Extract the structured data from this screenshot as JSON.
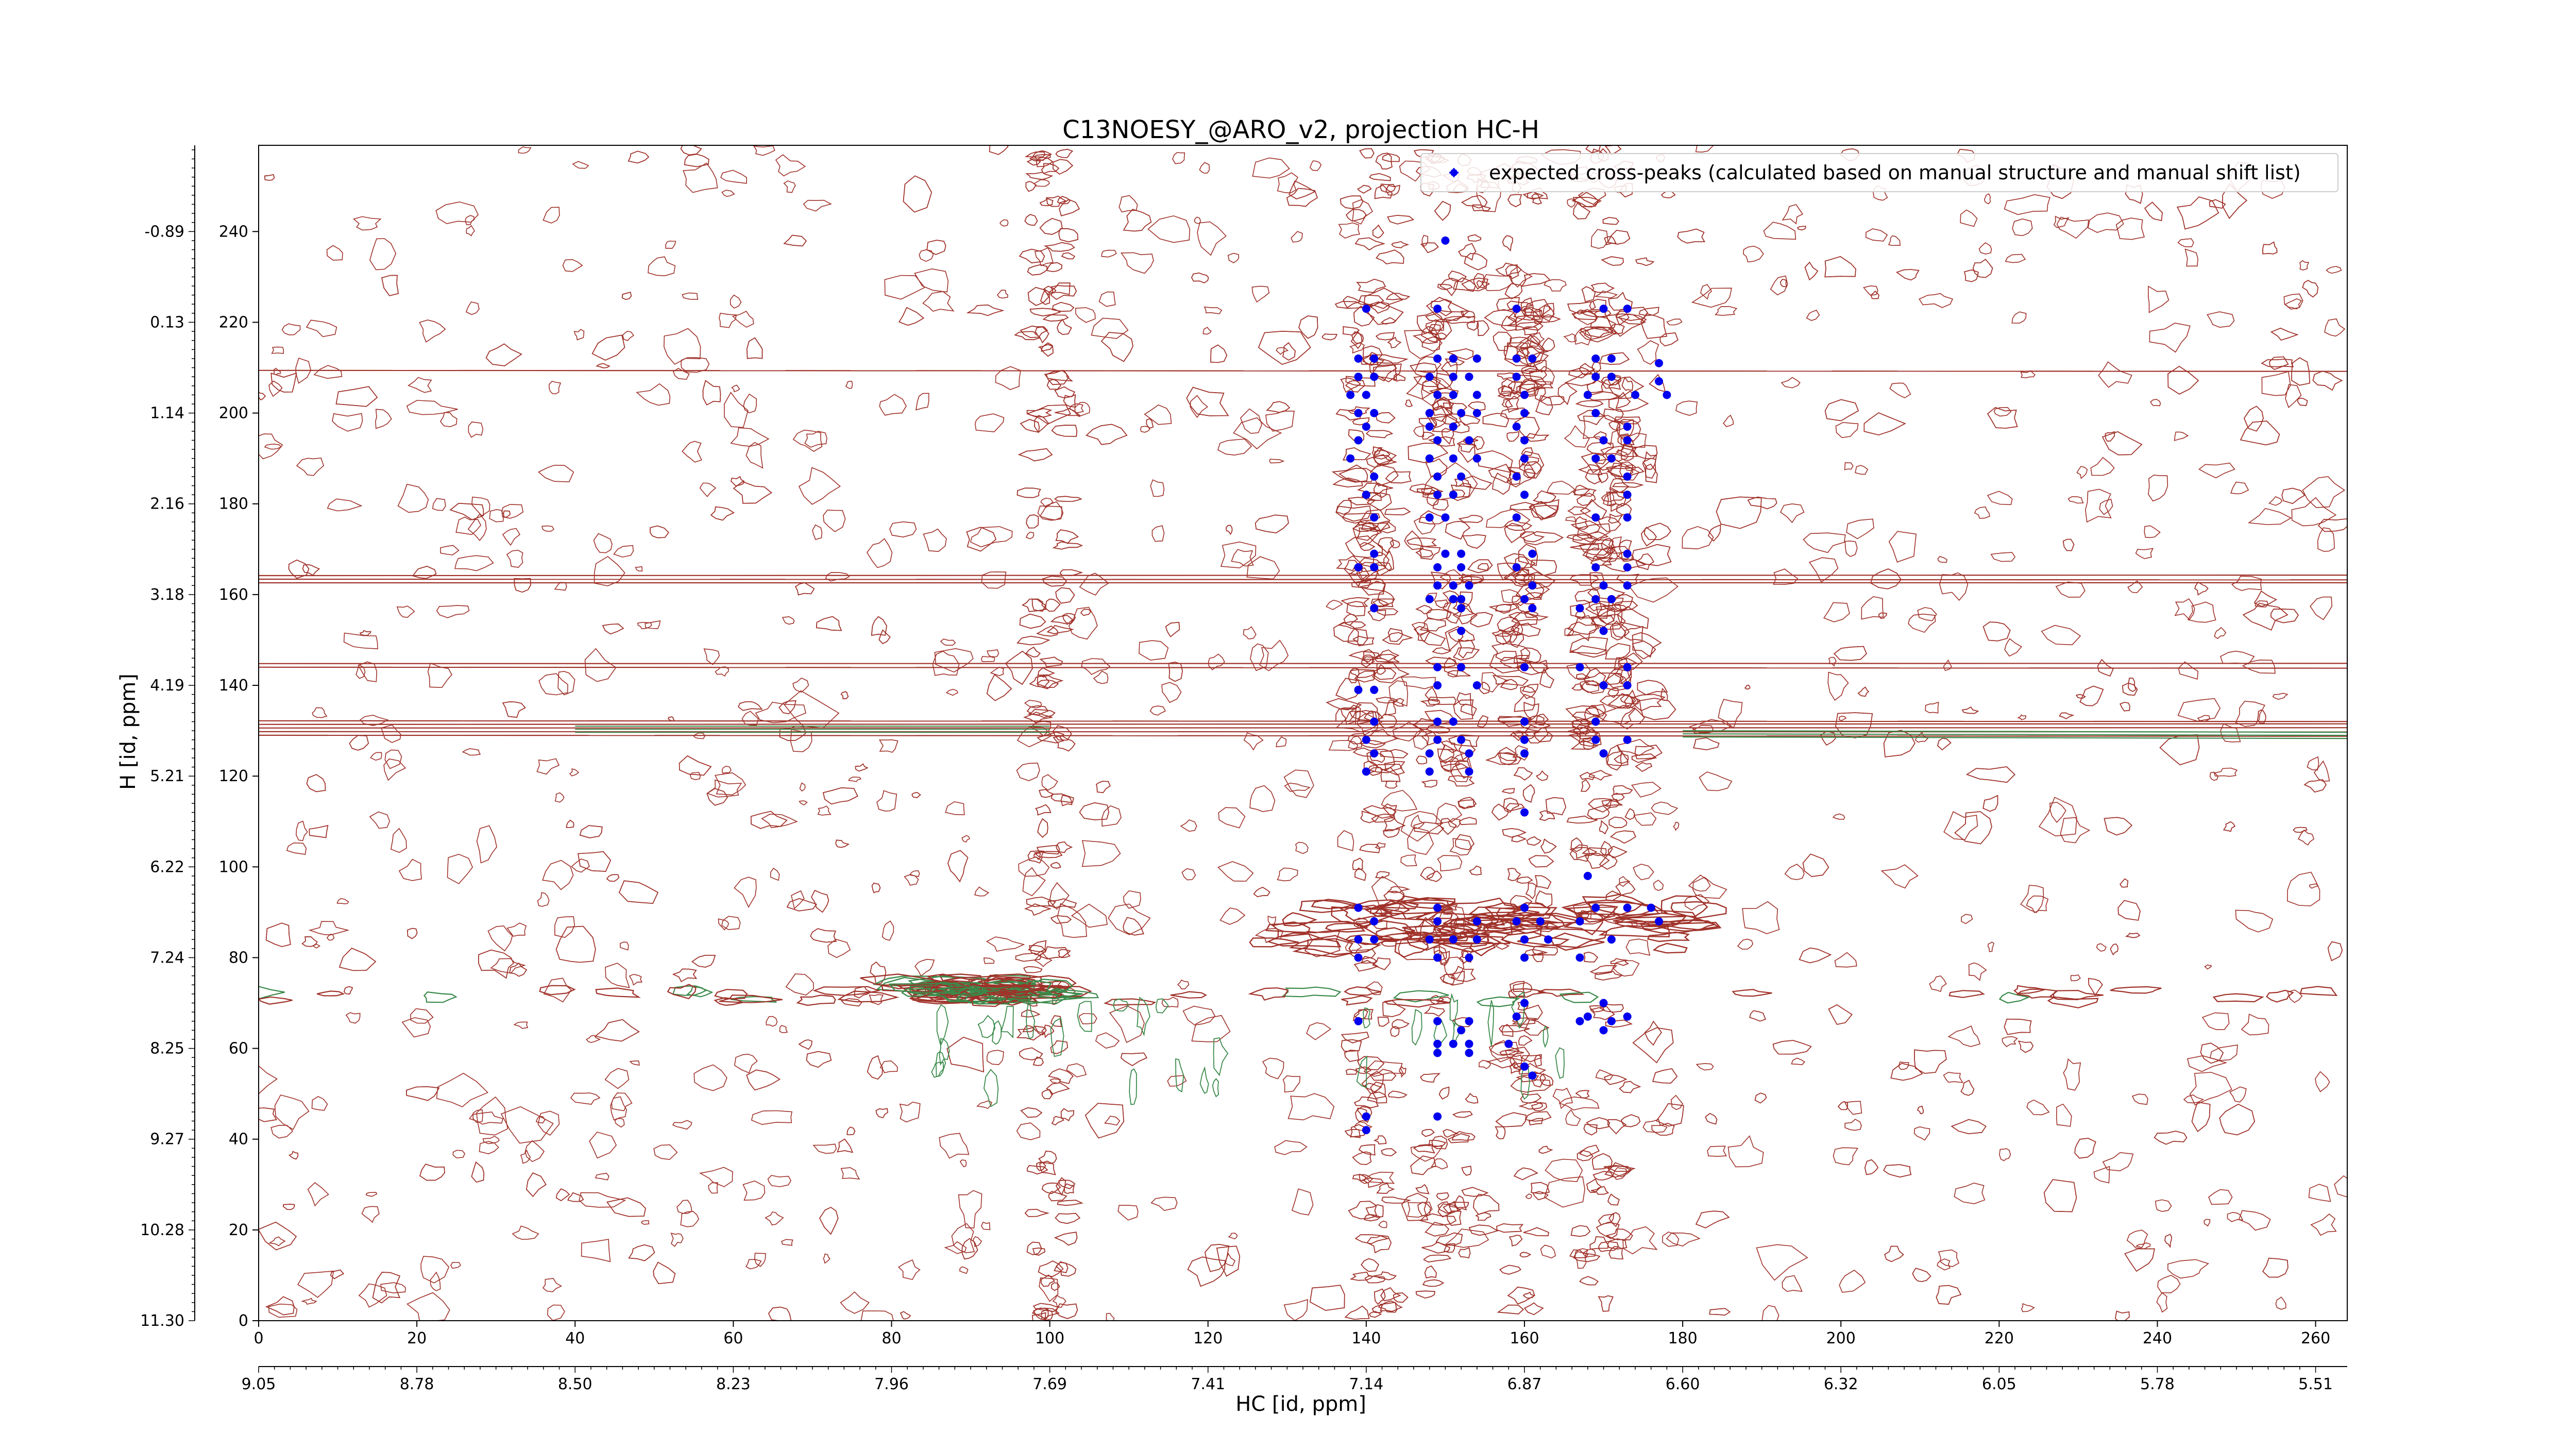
{
  "chart_data": {
    "type": "scatter",
    "title": "C13NOESY_@ARO_v2, projection HC-H",
    "xlabel": "HC [id, ppm]",
    "ylabel": "H [id, ppm]",
    "xlim": [
      0,
      264
    ],
    "ylim": [
      0,
      259
    ],
    "x_ticks_index": [
      "0",
      "20",
      "40",
      "60",
      "80",
      "100",
      "120",
      "140",
      "160",
      "180",
      "200",
      "220",
      "240",
      "260"
    ],
    "x_ticks_ppm": [
      "9.05",
      "8.78",
      "8.50",
      "8.23",
      "7.96",
      "7.69",
      "7.41",
      "7.14",
      "6.87",
      "6.60",
      "6.32",
      "6.05",
      "5.78",
      "5.51"
    ],
    "y_ticks_index": [
      "0",
      "20",
      "40",
      "60",
      "80",
      "100",
      "120",
      "140",
      "160",
      "180",
      "200",
      "220",
      "240"
    ],
    "y_ticks_ppm": [
      "11.30",
      "10.28",
      "9.27",
      "8.25",
      "7.24",
      "6.22",
      "5.21",
      "4.19",
      "3.18",
      "2.16",
      "1.14",
      "0.13",
      "-0.89"
    ],
    "legend": {
      "position": "top-right",
      "entries": [
        "expected cross-peaks (calculated based on manual structure and manual shift list)"
      ]
    },
    "colors": {
      "positive_contours": "#a0322a",
      "negative_contours": "#3a8a4a",
      "cross_peaks": "#0000ee"
    },
    "series": [
      {
        "name": "expected cross-peaks (calculated based on manual structure and manual shift list)",
        "points": [
          [
            150,
            238
          ],
          [
            140,
            223
          ],
          [
            149,
            223
          ],
          [
            159,
            223
          ],
          [
            170,
            223
          ],
          [
            173,
            223
          ],
          [
            139,
            212
          ],
          [
            141,
            212
          ],
          [
            149,
            212
          ],
          [
            151,
            212
          ],
          [
            154,
            212
          ],
          [
            159,
            212
          ],
          [
            161,
            212
          ],
          [
            169,
            212
          ],
          [
            171,
            212
          ],
          [
            177,
            211
          ],
          [
            139,
            208
          ],
          [
            141,
            208
          ],
          [
            148,
            208
          ],
          [
            151,
            208
          ],
          [
            153,
            208
          ],
          [
            159,
            208
          ],
          [
            169,
            208
          ],
          [
            171,
            208
          ],
          [
            177,
            207
          ],
          [
            138,
            204
          ],
          [
            140,
            204
          ],
          [
            149,
            204
          ],
          [
            151,
            204
          ],
          [
            154,
            204
          ],
          [
            160,
            204
          ],
          [
            168,
            204
          ],
          [
            174,
            204
          ],
          [
            178,
            204
          ],
          [
            139,
            200
          ],
          [
            141,
            200
          ],
          [
            148,
            200
          ],
          [
            152,
            200
          ],
          [
            154,
            200
          ],
          [
            160,
            200
          ],
          [
            169,
            200
          ],
          [
            140,
            197
          ],
          [
            148,
            197
          ],
          [
            151,
            197
          ],
          [
            159,
            197
          ],
          [
            173,
            197
          ],
          [
            139,
            194
          ],
          [
            149,
            194
          ],
          [
            153,
            194
          ],
          [
            160,
            194
          ],
          [
            170,
            194
          ],
          [
            173,
            194
          ],
          [
            138,
            190
          ],
          [
            148,
            190
          ],
          [
            151,
            190
          ],
          [
            154,
            190
          ],
          [
            160,
            190
          ],
          [
            169,
            190
          ],
          [
            171,
            190
          ],
          [
            141,
            186
          ],
          [
            149,
            186
          ],
          [
            152,
            186
          ],
          [
            159,
            186
          ],
          [
            173,
            186
          ],
          [
            140,
            182
          ],
          [
            149,
            182
          ],
          [
            151,
            182
          ],
          [
            160,
            182
          ],
          [
            173,
            182
          ],
          [
            141,
            177
          ],
          [
            148,
            177
          ],
          [
            150,
            177
          ],
          [
            159,
            177
          ],
          [
            169,
            177
          ],
          [
            173,
            177
          ],
          [
            141,
            169
          ],
          [
            150,
            169
          ],
          [
            152,
            169
          ],
          [
            161,
            169
          ],
          [
            173,
            169
          ],
          [
            139,
            166
          ],
          [
            141,
            166
          ],
          [
            149,
            166
          ],
          [
            152,
            166
          ],
          [
            159,
            166
          ],
          [
            169,
            166
          ],
          [
            173,
            166
          ],
          [
            149,
            162
          ],
          [
            151,
            162
          ],
          [
            153,
            162
          ],
          [
            161,
            162
          ],
          [
            170,
            162
          ],
          [
            173,
            162
          ],
          [
            148,
            159
          ],
          [
            151,
            159
          ],
          [
            152,
            159
          ],
          [
            160,
            159
          ],
          [
            169,
            159
          ],
          [
            171,
            159
          ],
          [
            141,
            157
          ],
          [
            152,
            157
          ],
          [
            161,
            157
          ],
          [
            167,
            157
          ],
          [
            152,
            152
          ],
          [
            170,
            152
          ],
          [
            149,
            144
          ],
          [
            152,
            144
          ],
          [
            160,
            144
          ],
          [
            167,
            144
          ],
          [
            173,
            144
          ],
          [
            149,
            140
          ],
          [
            154,
            140
          ],
          [
            170,
            140
          ],
          [
            173,
            140
          ],
          [
            139,
            139
          ],
          [
            141,
            139
          ],
          [
            141,
            132
          ],
          [
            149,
            132
          ],
          [
            151,
            132
          ],
          [
            160,
            132
          ],
          [
            169,
            132
          ],
          [
            140,
            128
          ],
          [
            149,
            128
          ],
          [
            152,
            128
          ],
          [
            160,
            128
          ],
          [
            169,
            128
          ],
          [
            173,
            128
          ],
          [
            141,
            125
          ],
          [
            148,
            125
          ],
          [
            153,
            125
          ],
          [
            160,
            125
          ],
          [
            170,
            125
          ],
          [
            140,
            121
          ],
          [
            148,
            121
          ],
          [
            153,
            121
          ],
          [
            160,
            112
          ],
          [
            168,
            98
          ],
          [
            139,
            91
          ],
          [
            149,
            91
          ],
          [
            160,
            91
          ],
          [
            169,
            91
          ],
          [
            173,
            91
          ],
          [
            176,
            91
          ],
          [
            141,
            88
          ],
          [
            149,
            88
          ],
          [
            154,
            88
          ],
          [
            159,
            88
          ],
          [
            162,
            88
          ],
          [
            167,
            88
          ],
          [
            177,
            88
          ],
          [
            139,
            84
          ],
          [
            141,
            84
          ],
          [
            148,
            84
          ],
          [
            151,
            84
          ],
          [
            154,
            84
          ],
          [
            160,
            84
          ],
          [
            163,
            84
          ],
          [
            171,
            84
          ],
          [
            139,
            80
          ],
          [
            149,
            80
          ],
          [
            153,
            80
          ],
          [
            160,
            80
          ],
          [
            167,
            80
          ],
          [
            160,
            70
          ],
          [
            170,
            70
          ],
          [
            159,
            67
          ],
          [
            168,
            67
          ],
          [
            173,
            67
          ],
          [
            139,
            66
          ],
          [
            149,
            66
          ],
          [
            153,
            66
          ],
          [
            167,
            66
          ],
          [
            171,
            66
          ],
          [
            152,
            64
          ],
          [
            170,
            64
          ],
          [
            149,
            61
          ],
          [
            151,
            61
          ],
          [
            153,
            61
          ],
          [
            158,
            61
          ],
          [
            149,
            59
          ],
          [
            153,
            59
          ],
          [
            160,
            56
          ],
          [
            161,
            54
          ],
          [
            140,
            45
          ],
          [
            149,
            45
          ],
          [
            140,
            42
          ]
        ]
      }
    ]
  }
}
